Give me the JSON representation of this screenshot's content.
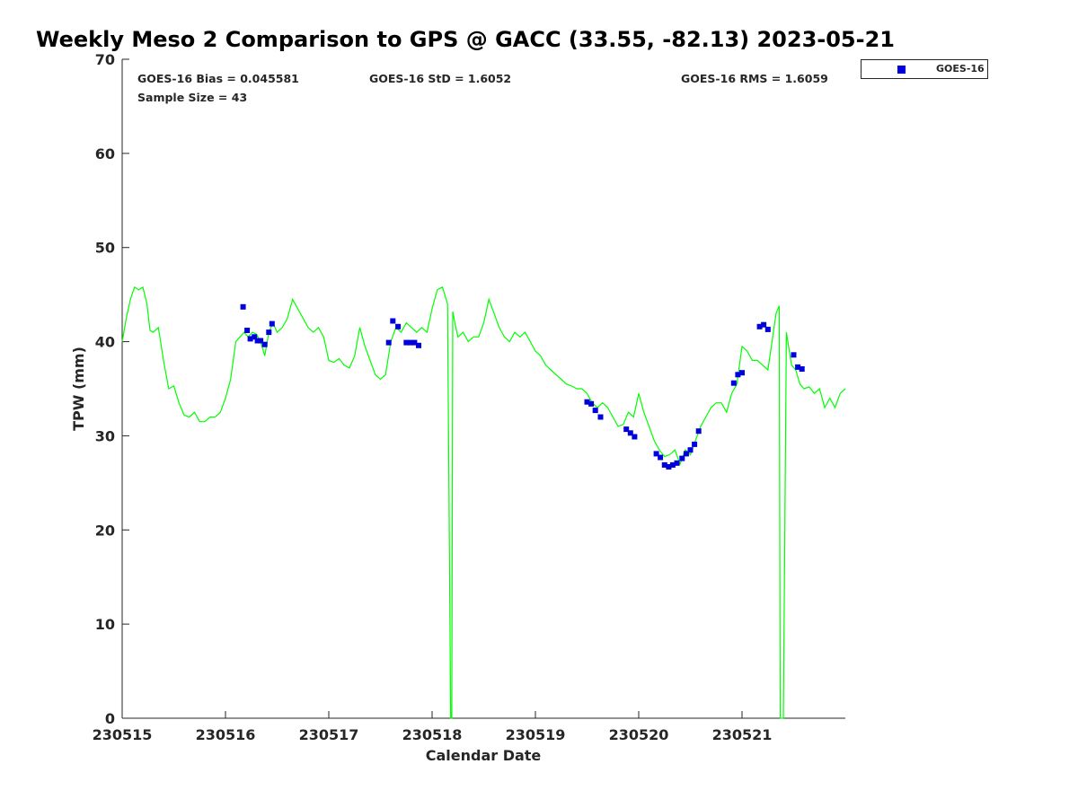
{
  "chart_data": {
    "type": "scatter",
    "title": "Weekly Meso 2 Comparison to GPS @ GACC (33.55, -82.13) 2023-05-21",
    "xlabel": "Calendar Date",
    "ylabel": "TPW (mm)",
    "xlim": [
      230515,
      230522
    ],
    "ylim": [
      0,
      70
    ],
    "x_tick_labels": [
      "230515",
      "230516",
      "230517",
      "230518",
      "230519",
      "230520",
      "230521"
    ],
    "y_tick_labels": [
      "0",
      "10",
      "20",
      "30",
      "40",
      "50",
      "60",
      "70"
    ],
    "legend_position": "top-right, outside",
    "grid": false,
    "annotations": {
      "bias": "GOES-16 Bias = 0.045581",
      "std": "GOES-16 StD = 1.6052",
      "rms": "GOES-16 RMS = 1.6059",
      "sample": "Sample Size = 43"
    },
    "series": [
      {
        "name": "GOES-16",
        "type": "scatter",
        "color": "#0000dd",
        "x": [
          230516.17,
          230516.21,
          230516.24,
          230516.28,
          230516.31,
          230516.34,
          230516.38,
          230516.42,
          230516.45,
          230517.58,
          230517.62,
          230517.67,
          230517.75,
          230517.79,
          230517.83,
          230517.87,
          230519.5,
          230519.54,
          230519.58,
          230519.63,
          230519.88,
          230519.92,
          230519.96,
          230520.17,
          230520.21,
          230520.25,
          230520.29,
          230520.33,
          230520.37,
          230520.42,
          230520.46,
          230520.5,
          230520.54,
          230520.58,
          230520.92,
          230520.96,
          230521.0,
          230521.17,
          230521.21,
          230521.25,
          230521.5,
          230521.54,
          230521.58
        ],
        "values": [
          43.7,
          41.2,
          40.3,
          40.5,
          40.1,
          40.1,
          39.7,
          41.0,
          41.9,
          39.9,
          42.2,
          41.6,
          39.9,
          39.9,
          39.9,
          39.6,
          33.6,
          33.4,
          32.7,
          32.0,
          30.7,
          30.3,
          29.9,
          28.1,
          27.7,
          26.9,
          26.7,
          26.9,
          27.1,
          27.6,
          28.1,
          28.5,
          29.1,
          30.5,
          35.6,
          36.5,
          36.7,
          41.6,
          41.8,
          41.3,
          38.6,
          37.3,
          37.1
        ]
      },
      {
        "type": "line",
        "color": "#00ff00",
        "x": [
          230515.0,
          230515.04,
          230515.08,
          230515.12,
          230515.16,
          230515.2,
          230515.24,
          230515.27,
          230515.3,
          230515.35,
          230515.4,
          230515.45,
          230515.5,
          230515.55,
          230515.6,
          230515.65,
          230515.7,
          230515.75,
          230515.8,
          230515.85,
          230515.9,
          230515.95,
          230516.0,
          230516.05,
          230516.1,
          230516.14,
          230516.18,
          230516.22,
          230516.26,
          230516.3,
          230516.34,
          230516.38,
          230516.42,
          230516.46,
          230516.5,
          230516.55,
          230516.6,
          230516.65,
          230516.7,
          230516.75,
          230516.8,
          230516.85,
          230516.9,
          230516.95,
          230517.0,
          230517.05,
          230517.1,
          230517.15,
          230517.2,
          230517.25,
          230517.3,
          230517.35,
          230517.4,
          230517.45,
          230517.5,
          230517.55,
          230517.6,
          230517.65,
          230517.7,
          230517.75,
          230517.8,
          230517.85,
          230517.9,
          230517.95,
          230518.0,
          230518.05,
          230518.1,
          230518.15,
          230518.18,
          230518.19,
          230518.2,
          230518.22,
          230518.25,
          230518.3,
          230518.35,
          230518.4,
          230518.45,
          230518.5,
          230518.55,
          230518.6,
          230518.65,
          230518.7,
          230518.75,
          230518.8,
          230518.85,
          230518.9,
          230518.95,
          230519.0,
          230519.05,
          230519.1,
          230519.15,
          230519.2,
          230519.25,
          230519.3,
          230519.35,
          230519.4,
          230519.45,
          230519.5,
          230519.55,
          230519.6,
          230519.65,
          230519.7,
          230519.75,
          230519.8,
          230519.85,
          230519.9,
          230519.95,
          230520.0,
          230520.05,
          230520.1,
          230520.15,
          230520.2,
          230520.25,
          230520.3,
          230520.35,
          230520.4,
          230520.45,
          230520.5,
          230520.55,
          230520.6,
          230520.65,
          230520.7,
          230520.75,
          230520.8,
          230520.85,
          230520.9,
          230520.95,
          230521.0,
          230521.05,
          230521.1,
          230521.15,
          230521.2,
          230521.25,
          230521.29,
          230521.33,
          230521.36,
          230521.37,
          230521.4,
          230521.43,
          230521.45,
          230521.48,
          230521.52,
          230521.56,
          230521.6,
          230521.65,
          230521.7,
          230521.75,
          230521.8,
          230521.85,
          230521.9,
          230521.95,
          230522.0
        ],
        "values": [
          40.0,
          42.5,
          44.5,
          45.8,
          45.5,
          45.8,
          44.0,
          41.2,
          41.0,
          41.5,
          38.0,
          35.0,
          35.3,
          33.5,
          32.2,
          32.0,
          32.5,
          31.5,
          31.5,
          32.0,
          32.0,
          32.5,
          34.0,
          36.0,
          40.0,
          40.5,
          41.0,
          40.5,
          41.0,
          40.8,
          40.0,
          38.5,
          41.0,
          42.0,
          41.0,
          41.5,
          42.5,
          44.5,
          43.5,
          42.5,
          41.5,
          41.0,
          41.5,
          40.5,
          38.0,
          37.8,
          38.2,
          37.5,
          37.2,
          38.5,
          41.5,
          39.5,
          38.0,
          36.5,
          36.0,
          36.5,
          40.0,
          41.5,
          41.0,
          42.0,
          41.5,
          41.0,
          41.5,
          41.0,
          43.5,
          45.5,
          45.8,
          44.0,
          0.0,
          0.0,
          43.2,
          42.0,
          40.5,
          41.0,
          40.0,
          40.5,
          40.5,
          42.0,
          44.5,
          43.0,
          41.5,
          40.5,
          40.0,
          41.0,
          40.5,
          41.0,
          40.0,
          39.0,
          38.5,
          37.5,
          37.0,
          36.5,
          36.0,
          35.5,
          35.3,
          35.0,
          35.0,
          34.5,
          33.5,
          33.0,
          33.5,
          33.0,
          32.0,
          31.0,
          31.2,
          32.5,
          32.0,
          34.5,
          32.5,
          31.0,
          29.5,
          28.5,
          27.8,
          28.0,
          28.5,
          27.0,
          28.5,
          28.0,
          29.5,
          31.0,
          32.0,
          33.0,
          33.5,
          33.5,
          32.5,
          34.5,
          35.5,
          39.5,
          39.0,
          38.0,
          38.0,
          37.5,
          37.0,
          40.0,
          43.0,
          43.8,
          0.0,
          0.0,
          41.0,
          39.5,
          37.5,
          37.0,
          35.5,
          35.0,
          35.2,
          34.5,
          35.0,
          33.0,
          34.0,
          33.0,
          34.5,
          35.0
        ]
      }
    ]
  }
}
